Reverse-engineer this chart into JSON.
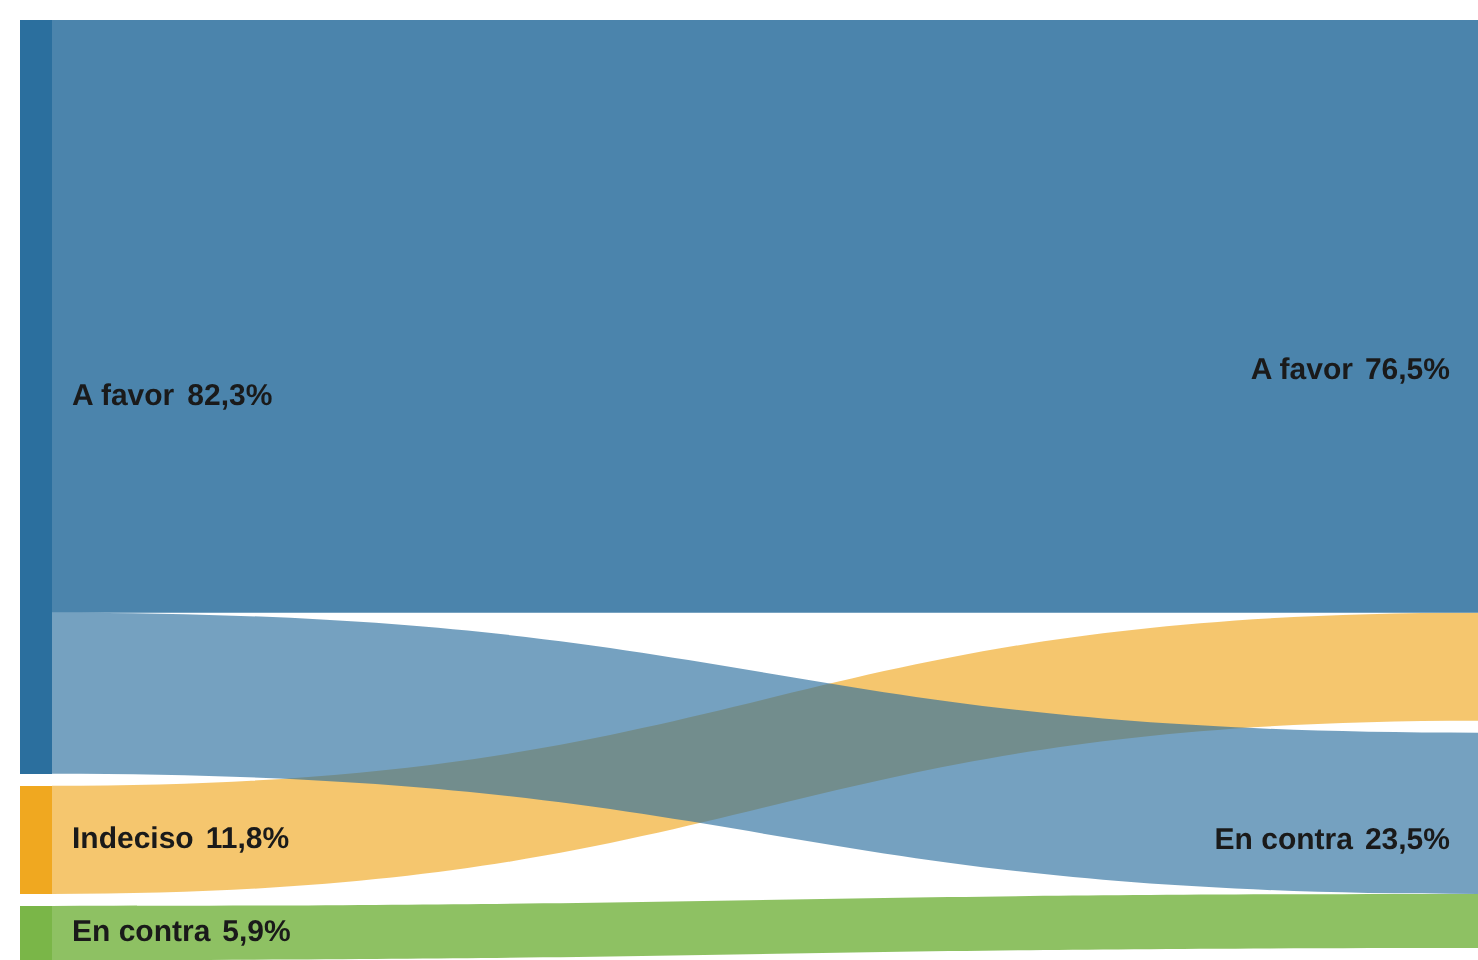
{
  "chart_data": {
    "type": "other",
    "categories": [
      "A favor",
      "Indeciso",
      "En contra"
    ],
    "series": [
      {
        "values": [
          82.3,
          11.8,
          5.9
        ],
        "value_labels": [
          "82,3%",
          "11,8%",
          "5,9%"
        ],
        "colors": [
          "#2b6f9e",
          "#f0a820",
          "#7ab648"
        ]
      },
      {
        "values": [
          76.5,
          null,
          23.5
        ],
        "value_labels": [
          "76,5%",
          null,
          "23,5%"
        ]
      }
    ]
  }
}
